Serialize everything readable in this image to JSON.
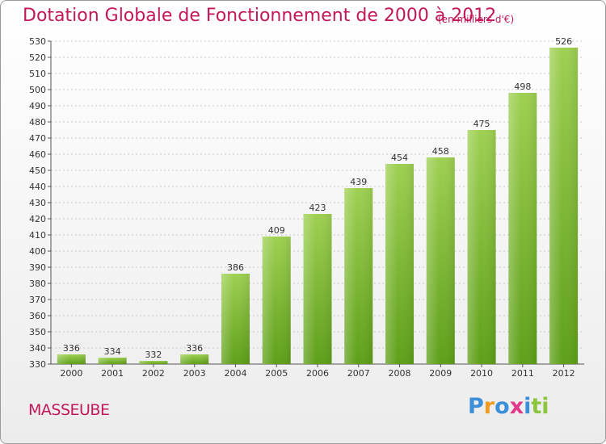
{
  "title": "Dotation Globale de Fonctionnement de 2000 à 2012",
  "unit_note": "(en milliers d'€)",
  "commune": "MASSEUBE",
  "logo": {
    "text": "Proxiti",
    "letters": [
      "P",
      "r",
      "o",
      "x",
      "i",
      "t",
      "i"
    ],
    "colors": [
      "#3b8fd8",
      "#f39a1e",
      "#3b8fd8",
      "#e0398a",
      "#3b8fd8",
      "#8cc63f",
      "#8cc63f"
    ]
  },
  "colors": {
    "bar_top": "#9ed052",
    "bar_bottom": "#5e9f19",
    "accent": "#c2185b"
  },
  "chart_data": {
    "type": "bar",
    "categories": [
      "2000",
      "2001",
      "2002",
      "2003",
      "2004",
      "2005",
      "2006",
      "2007",
      "2008",
      "2009",
      "2010",
      "2011",
      "2012"
    ],
    "values": [
      336,
      334,
      332,
      336,
      386,
      409,
      423,
      439,
      454,
      458,
      475,
      498,
      526
    ],
    "title": "Dotation Globale de Fonctionnement de 2000 à 2012",
    "ylim": [
      330,
      530
    ],
    "yticks": [
      330,
      340,
      350,
      360,
      370,
      380,
      390,
      400,
      410,
      420,
      430,
      440,
      450,
      460,
      470,
      480,
      490,
      500,
      510,
      520,
      530
    ],
    "grid": true
  }
}
